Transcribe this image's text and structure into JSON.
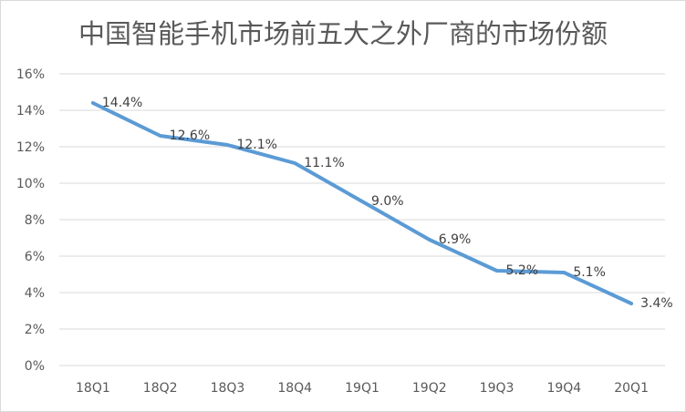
{
  "chart_data": {
    "type": "line",
    "title": "中国智能手机市场前五大之外厂商的市场份额",
    "categories": [
      "18Q1",
      "18Q2",
      "18Q3",
      "18Q4",
      "19Q1",
      "19Q2",
      "19Q3",
      "19Q4",
      "20Q1"
    ],
    "series": [
      {
        "name": "市场份额",
        "values": [
          14.4,
          12.6,
          12.1,
          11.1,
          9.0,
          6.9,
          5.2,
          5.1,
          3.4
        ],
        "labels": [
          "14.4%",
          "12.6%",
          "12.1%",
          "11.1%",
          "9.0%",
          "6.9%",
          "5.2%",
          "5.1%",
          "3.4%"
        ],
        "color": "#5b9bd5"
      }
    ],
    "y_ticks": [
      0,
      2,
      4,
      6,
      8,
      10,
      12,
      14,
      16
    ],
    "y_tick_labels": [
      "0%",
      "2%",
      "4%",
      "6%",
      "8%",
      "10%",
      "12%",
      "14%",
      "16%"
    ],
    "ylim": [
      0,
      16
    ],
    "xlabel": "",
    "ylabel": "",
    "grid": true,
    "legend": "none"
  }
}
